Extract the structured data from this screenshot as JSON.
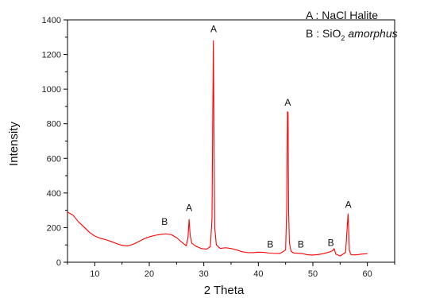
{
  "chart_data": {
    "type": "line",
    "title": "",
    "xlabel": "2 Theta",
    "ylabel": "Intensity",
    "xlim": [
      5,
      65
    ],
    "ylim": [
      0,
      1400
    ],
    "x_ticks": [
      10,
      20,
      30,
      40,
      50,
      60
    ],
    "y_ticks": [
      0,
      200,
      400,
      600,
      800,
      1000,
      1200,
      1400
    ],
    "line_color": "#ff0000",
    "grid": false,
    "legend": {
      "placement": "top-right",
      "entries": [
        {
          "key": "A",
          "sep": " : ",
          "text": "NaCl Halite",
          "sub": "",
          "italic": ""
        },
        {
          "key": "B",
          "sep": " : ",
          "text": "SiO",
          "sub": "2",
          "italic": "amorphus"
        }
      ]
    },
    "series": [
      {
        "x": [
          5.0,
          6.0,
          7.0,
          8.0,
          9.0,
          10.0,
          11.0,
          12.0,
          13.0,
          14.0,
          15.0,
          16.0,
          17.0,
          18.0,
          19.0,
          20.0,
          21.0,
          22.0,
          23.0,
          24.0,
          25.0,
          26.0,
          26.8,
          27.1,
          27.3,
          27.5,
          27.8,
          28.5,
          29.5,
          30.5,
          31.2,
          31.5,
          31.65,
          31.75,
          31.85,
          32.0,
          32.3,
          33.0,
          34.0,
          35.0,
          36.0,
          37.0,
          38.0,
          39.0,
          40.0,
          41.0,
          42.0,
          43.0,
          44.0,
          45.0,
          45.2,
          45.35,
          45.45,
          45.55,
          45.7,
          46.0,
          46.5,
          47.0,
          48.0,
          49.0,
          50.0,
          51.0,
          52.0,
          53.0,
          53.6,
          53.9,
          54.2,
          55.0,
          56.0,
          56.3,
          56.45,
          56.55,
          56.7,
          57.0,
          58.0,
          59.0,
          60.0
        ],
        "y": [
          290,
          265,
          225,
          200,
          175,
          155,
          140,
          128,
          118,
          110,
          105,
          102,
          105,
          112,
          125,
          140,
          155,
          165,
          168,
          160,
          140,
          115,
          100,
          150,
          250,
          150,
          100,
          85,
          78,
          80,
          90,
          250,
          900,
          1280,
          800,
          200,
          100,
          80,
          75,
          70,
          68,
          65,
          63,
          60,
          58,
          55,
          53,
          55,
          55,
          70,
          300,
          860,
          860,
          300,
          120,
          70,
          55,
          50,
          48,
          45,
          45,
          45,
          45,
          50,
          60,
          80,
          55,
          45,
          60,
          200,
          275,
          200,
          70,
          45,
          40,
          40,
          42
        ]
      }
    ],
    "annotations": [
      {
        "text": "A",
        "x": 31.8,
        "y": 1330
      },
      {
        "text": "A",
        "x": 45.4,
        "y": 905
      },
      {
        "text": "A",
        "x": 27.3,
        "y": 295
      },
      {
        "text": "A",
        "x": 56.5,
        "y": 315
      },
      {
        "text": "B",
        "x": 22.8,
        "y": 215
      },
      {
        "text": "B",
        "x": 42.2,
        "y": 85
      },
      {
        "text": "B",
        "x": 47.8,
        "y": 85
      },
      {
        "text": "B",
        "x": 53.3,
        "y": 95
      }
    ]
  }
}
